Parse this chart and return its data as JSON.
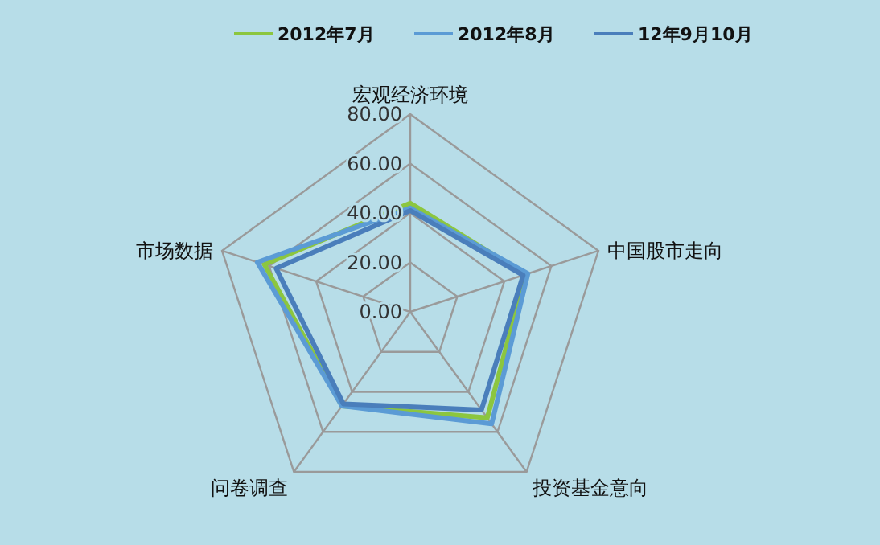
{
  "chart_data": {
    "type": "radar",
    "categories": [
      "宏观经济环境",
      "中国股市走向",
      "投资基金意向",
      "问卷调查",
      "市场数据"
    ],
    "series": [
      {
        "name": "2012年7月",
        "color": "#8cc63f",
        "values": [
          44,
          49,
          53,
          47,
          62
        ]
      },
      {
        "name": "2012年8月",
        "color": "#5b9bd5",
        "values": [
          42,
          50,
          56,
          47,
          65
        ]
      },
      {
        "name": "12年9月10月",
        "color": "#4a7ebb",
        "values": [
          41,
          48,
          49,
          46,
          57
        ]
      }
    ],
    "ylim": [
      0,
      80
    ],
    "yticks": [
      {
        "value": 0,
        "label": "0.00"
      },
      {
        "value": 20,
        "label": "20.00"
      },
      {
        "value": 40,
        "label": "40.00"
      },
      {
        "value": 60,
        "label": "60.00"
      },
      {
        "value": 80,
        "label": "80.00"
      }
    ],
    "grid": true,
    "legend": "top",
    "marker": "none"
  }
}
